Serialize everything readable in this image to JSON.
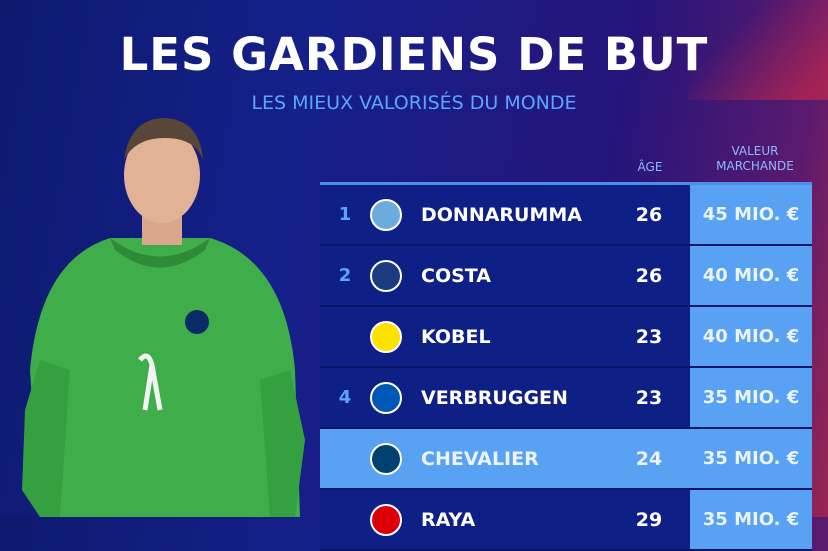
{
  "title": "LES GARDIENS DE BUT",
  "subtitle": "LES MIEUX VALORISÉS DU MONDE",
  "headers": {
    "age": "ÂGE",
    "value_line1": "VALEUR",
    "value_line2": "MARCHANDE"
  },
  "rows": [
    {
      "rank": "1",
      "club": "manchester-city",
      "logo_color": "#6cabdd",
      "name": "DONNARUMMA",
      "age": "26",
      "value": "45 MIO. €",
      "highlight": false
    },
    {
      "rank": "2",
      "club": "fc-porto",
      "logo_color": "#1c3c82",
      "name": "COSTA",
      "age": "26",
      "value": "40 MIO. €",
      "highlight": false
    },
    {
      "rank": "",
      "club": "borussia-dortmund",
      "logo_color": "#fde100",
      "name": "KOBEL",
      "age": "23",
      "value": "40 MIO. €",
      "highlight": false
    },
    {
      "rank": "4",
      "club": "brighton",
      "logo_color": "#0057b8",
      "name": "VERBRUGGEN",
      "age": "23",
      "value": "35 MIO. €",
      "highlight": false
    },
    {
      "rank": "",
      "club": "paris-saint-germain",
      "logo_color": "#004170",
      "name": "CHEVALIER",
      "age": "24",
      "value": "35 MIO. €",
      "highlight": true
    },
    {
      "rank": "",
      "club": "arsenal",
      "logo_color": "#db0007",
      "name": "RAYA",
      "age": "29",
      "value": "35 MIO. €",
      "highlight": false
    }
  ]
}
